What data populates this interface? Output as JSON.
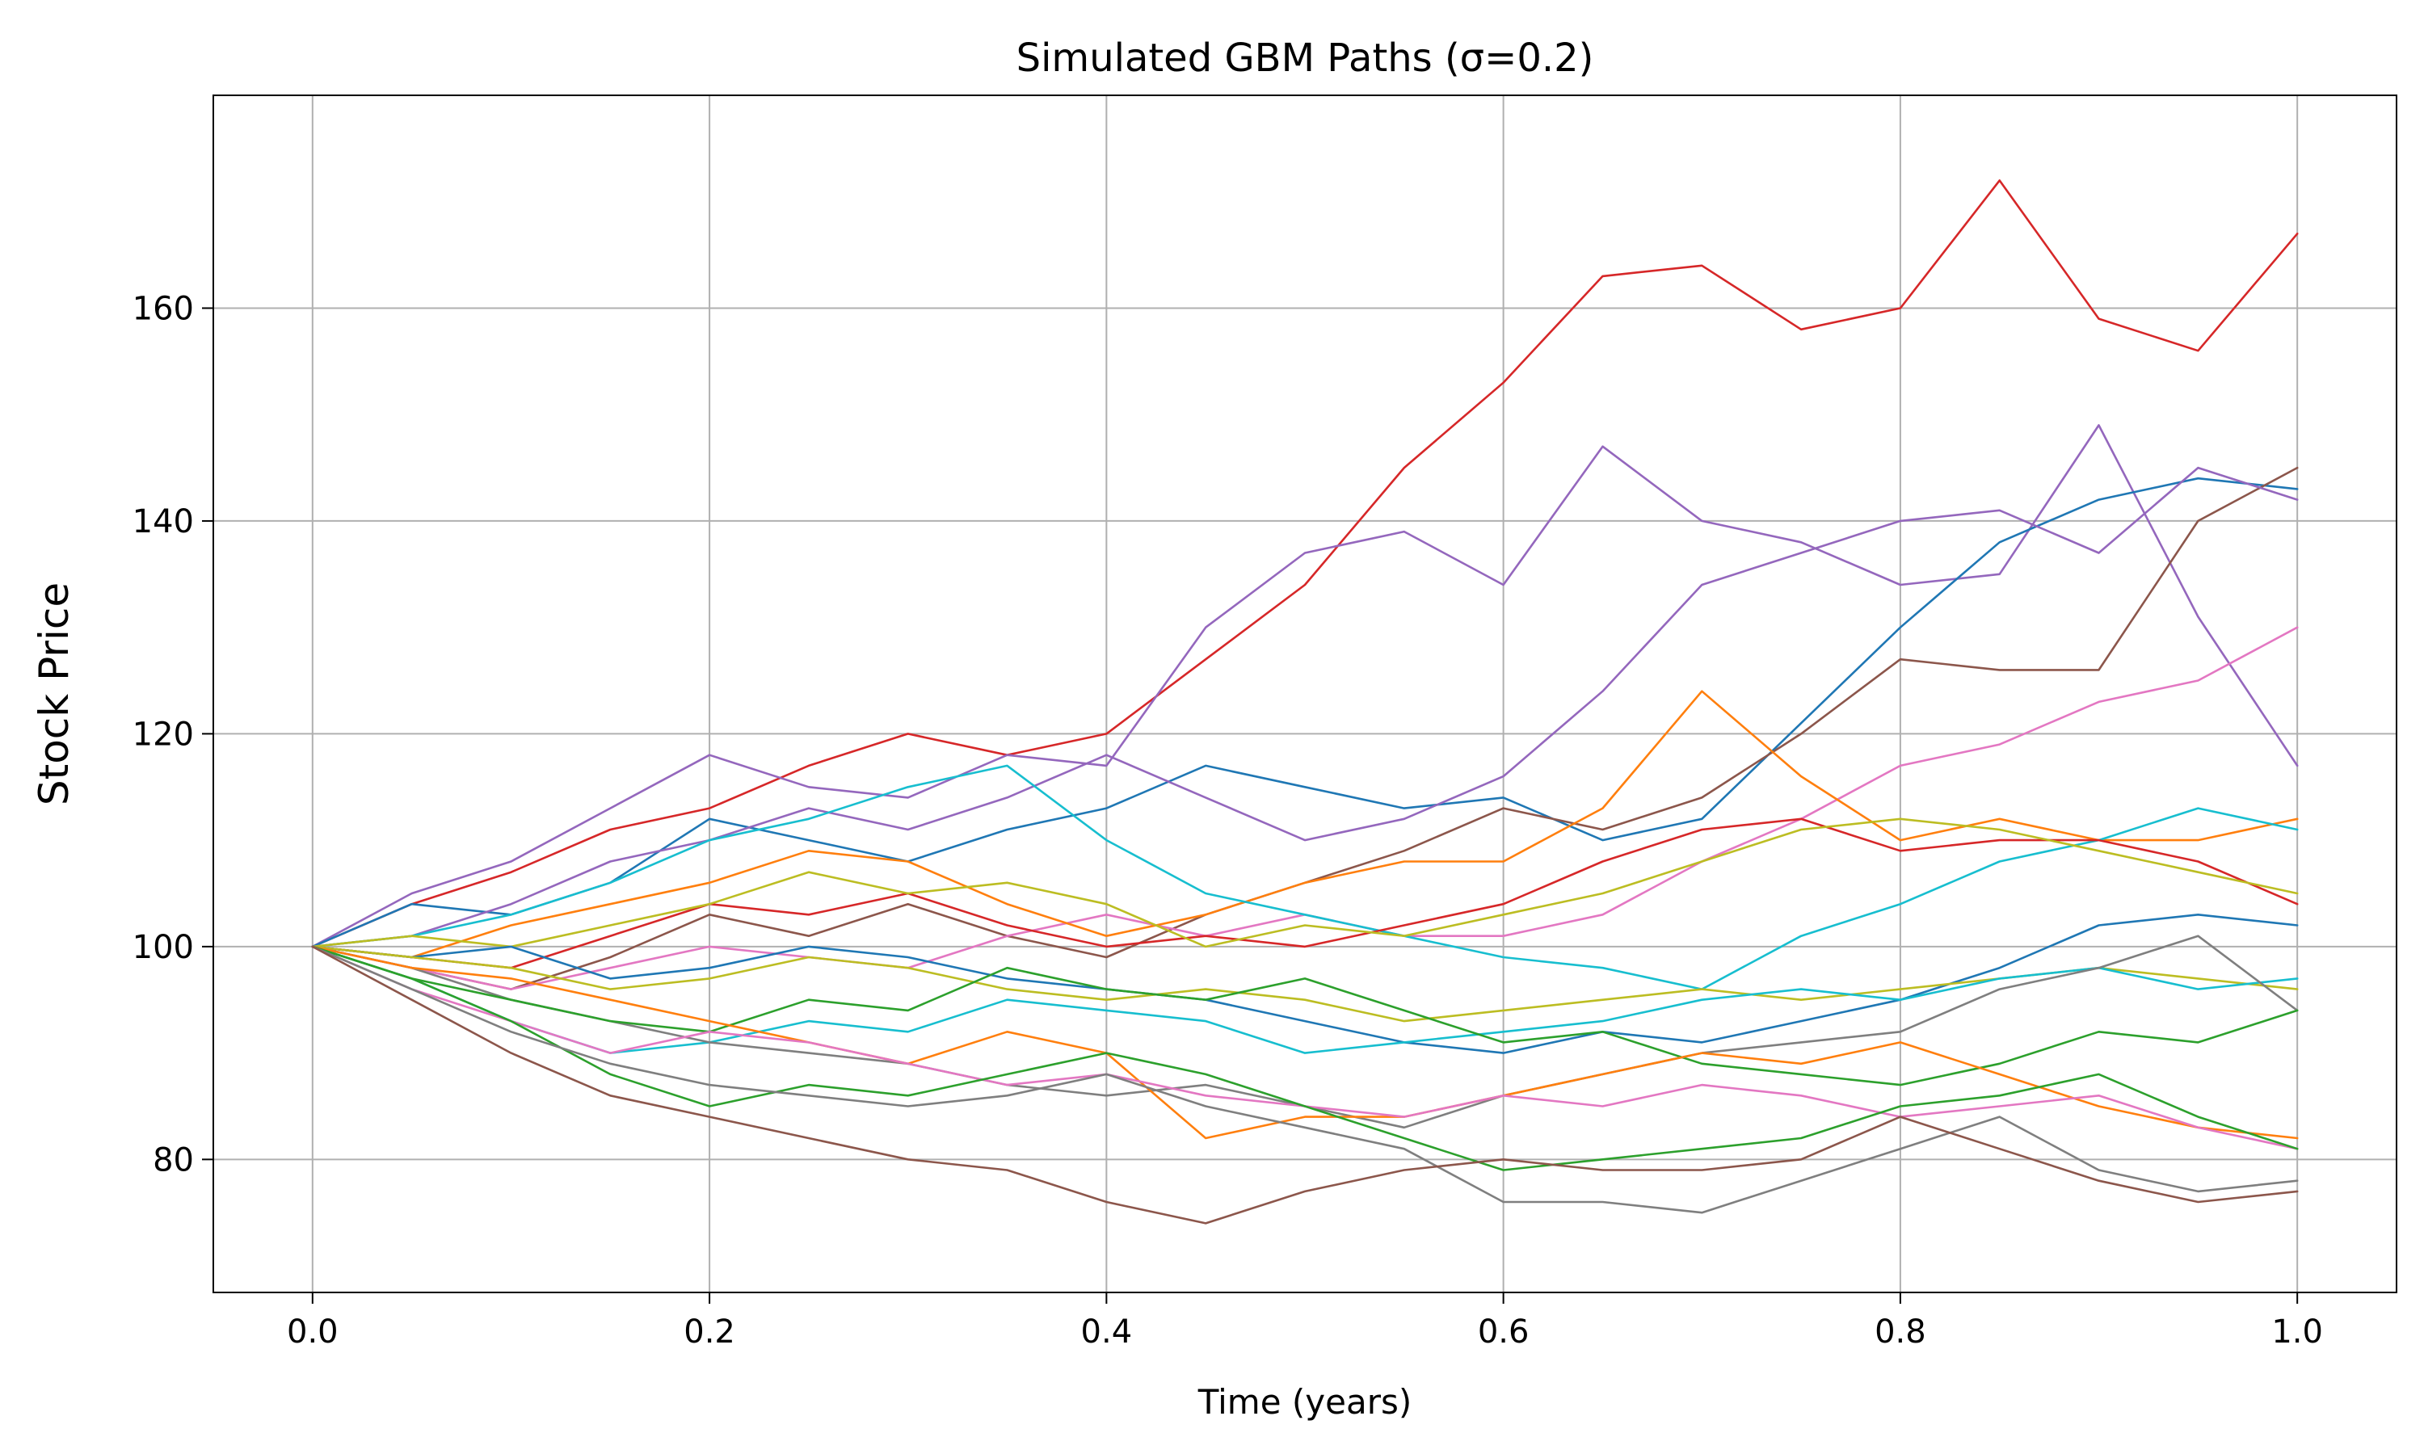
{
  "chart_data": {
    "type": "line",
    "title": "Simulated GBM Paths (σ=0.2)",
    "xlabel": "Time (years)",
    "ylabel": "Stock Price",
    "xlim": [
      -0.05,
      1.05
    ],
    "ylim": [
      67.5,
      180
    ],
    "xticks": [
      0.0,
      0.2,
      0.4,
      0.6,
      0.8,
      1.0
    ],
    "xtick_labels": [
      "0.0",
      "0.2",
      "0.4",
      "0.6",
      "0.8",
      "1.0"
    ],
    "yticks": [
      80,
      100,
      120,
      140,
      160
    ],
    "ytick_labels": [
      "80",
      "100",
      "120",
      "140",
      "160"
    ],
    "grid": true,
    "legend": "none",
    "x": [
      0.0,
      0.05,
      0.1,
      0.15,
      0.2,
      0.25,
      0.3,
      0.35,
      0.4,
      0.45,
      0.5,
      0.55,
      0.6,
      0.65,
      0.7,
      0.75,
      0.8,
      0.85,
      0.9,
      0.95,
      1.0
    ],
    "series": [
      {
        "color": "#d62728",
        "values": [
          100,
          104,
          107,
          111,
          113,
          117,
          120,
          118,
          120,
          127,
          134,
          145,
          153,
          163,
          164,
          158,
          160,
          172,
          159,
          156,
          167
        ]
      },
      {
        "color": "#9467bd",
        "values": [
          100,
          105,
          108,
          113,
          118,
          115,
          114,
          118,
          117,
          130,
          137,
          139,
          134,
          147,
          140,
          138,
          134,
          135,
          149,
          131,
          117
        ]
      },
      {
        "color": "#1f77b4",
        "values": [
          100,
          104,
          103,
          106,
          112,
          110,
          108,
          111,
          113,
          117,
          115,
          113,
          114,
          110,
          112,
          121,
          130,
          138,
          142,
          144,
          143
        ]
      },
      {
        "color": "#8c564b",
        "values": [
          100,
          98,
          96,
          99,
          103,
          101,
          104,
          101,
          99,
          103,
          106,
          109,
          113,
          111,
          114,
          120,
          127,
          126,
          126,
          140,
          145
        ]
      },
      {
        "color": "#9467bd",
        "values": [
          100,
          101,
          104,
          108,
          110,
          113,
          111,
          114,
          118,
          114,
          110,
          112,
          116,
          124,
          134,
          137,
          140,
          141,
          137,
          145,
          142
        ]
      },
      {
        "color": "#e377c2",
        "values": [
          100,
          98,
          96,
          98,
          100,
          99,
          98,
          101,
          103,
          101,
          103,
          101,
          101,
          103,
          108,
          112,
          117,
          119,
          123,
          125,
          130
        ]
      },
      {
        "color": "#ff7f0e",
        "values": [
          100,
          99,
          102,
          104,
          106,
          109,
          108,
          104,
          101,
          103,
          106,
          108,
          108,
          113,
          124,
          116,
          110,
          112,
          110,
          110,
          112
        ]
      },
      {
        "color": "#17becf",
        "values": [
          100,
          101,
          103,
          106,
          110,
          112,
          115,
          117,
          110,
          105,
          103,
          101,
          99,
          98,
          96,
          101,
          104,
          108,
          110,
          113,
          111
        ]
      },
      {
        "color": "#d62728",
        "values": [
          100,
          99,
          98,
          101,
          104,
          103,
          105,
          102,
          100,
          101,
          100,
          102,
          104,
          108,
          111,
          112,
          109,
          110,
          110,
          108,
          104
        ]
      },
      {
        "color": "#bcbd22",
        "values": [
          100,
          101,
          100,
          102,
          104,
          107,
          105,
          106,
          104,
          100,
          102,
          101,
          103,
          105,
          108,
          111,
          112,
          111,
          109,
          107,
          105
        ]
      },
      {
        "color": "#1f77b4",
        "values": [
          100,
          99,
          100,
          97,
          98,
          100,
          99,
          97,
          96,
          95,
          93,
          91,
          90,
          92,
          91,
          93,
          95,
          98,
          102,
          103,
          102
        ]
      },
      {
        "color": "#bcbd22",
        "values": [
          100,
          99,
          98,
          96,
          97,
          99,
          98,
          96,
          95,
          96,
          95,
          93,
          94,
          95,
          96,
          95,
          96,
          97,
          98,
          97,
          96
        ]
      },
      {
        "color": "#17becf",
        "values": [
          100,
          97,
          93,
          90,
          91,
          93,
          92,
          95,
          94,
          93,
          90,
          91,
          92,
          93,
          95,
          96,
          95,
          97,
          98,
          96,
          97
        ]
      },
      {
        "color": "#7f7f7f",
        "values": [
          100,
          98,
          95,
          93,
          91,
          90,
          89,
          87,
          86,
          87,
          85,
          83,
          86,
          88,
          90,
          91,
          92,
          96,
          98,
          101,
          94
        ]
      },
      {
        "color": "#2ca02c",
        "values": [
          100,
          97,
          95,
          93,
          92,
          95,
          94,
          98,
          96,
          95,
          97,
          94,
          91,
          92,
          89,
          88,
          87,
          89,
          92,
          91,
          94
        ]
      },
      {
        "color": "#ff7f0e",
        "values": [
          100,
          98,
          97,
          95,
          93,
          91,
          89,
          92,
          90,
          82,
          84,
          84,
          86,
          88,
          90,
          89,
          91,
          88,
          85,
          83,
          82
        ]
      },
      {
        "color": "#e377c2",
        "values": [
          100,
          96,
          93,
          90,
          92,
          91,
          89,
          87,
          88,
          86,
          85,
          84,
          86,
          85,
          87,
          86,
          84,
          85,
          86,
          83,
          81
        ]
      },
      {
        "color": "#2ca02c",
        "values": [
          100,
          97,
          93,
          88,
          85,
          87,
          86,
          88,
          90,
          88,
          85,
          82,
          79,
          80,
          81,
          82,
          85,
          86,
          88,
          84,
          81
        ]
      },
      {
        "color": "#7f7f7f",
        "values": [
          100,
          96,
          92,
          89,
          87,
          86,
          85,
          86,
          88,
          85,
          83,
          81,
          76,
          76,
          75,
          78,
          81,
          84,
          79,
          77,
          78
        ]
      },
      {
        "color": "#8c564b",
        "values": [
          100,
          95,
          90,
          86,
          84,
          82,
          80,
          79,
          76,
          74,
          77,
          79,
          80,
          79,
          79,
          80,
          84,
          81,
          78,
          76,
          77
        ]
      }
    ]
  }
}
